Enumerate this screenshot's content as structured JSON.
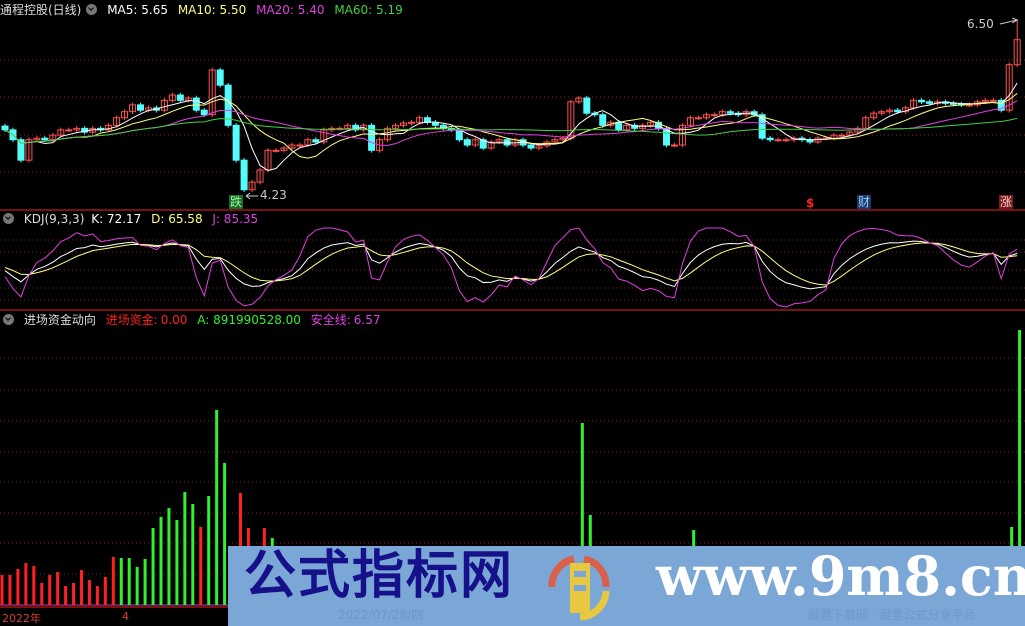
{
  "header": {
    "title": "通程控股(日线)",
    "ma5": "MA5: 5.65",
    "ma10": "MA10: 5.50",
    "ma20": "MA20: 5.40",
    "ma60": "MA60: 5.19"
  },
  "kdj_header": {
    "title": "KDJ(9,3,3)",
    "k": "K: 72.17",
    "d": "D: 65.58",
    "j": "J: 85.35"
  },
  "fund_header": {
    "title": "进场资金动向",
    "entry_label": "进场资金:",
    "entry_value": "0.00",
    "a": "A: 891990528.00",
    "safe_label": "安全线:",
    "safe_value": "6.57"
  },
  "annotations": {
    "high": "6.50",
    "low": "4.23",
    "fall": "跌",
    "dollar": "$",
    "finance": "财",
    "rise": "涨"
  },
  "axis": {
    "year": "2022年",
    "month": "4"
  },
  "watermark": {
    "name": "公式指标网",
    "url": "www.9m8.cn",
    "date": "2022/07/28/四",
    "slogan": "股票下载网 · 股票公式分享平台",
    "logo_ring": "www.9m8.cn"
  },
  "colors": {
    "up": "#ff5050",
    "down": "#54fcfc",
    "ma5": "#ffffff",
    "ma10": "#ffff80",
    "ma20": "#e040e0",
    "ma60": "#40d040",
    "grid": "#802020",
    "fund_up": "#ff2020",
    "fund_down": "#30f030"
  },
  "chart_data": [
    {
      "type": "candlestick",
      "title": "通程控股(日线)",
      "ylim": [
        4.23,
        6.5
      ],
      "low_marker": 4.23,
      "high_marker": 6.5,
      "closes": [
        5.05,
        4.92,
        4.65,
        4.92,
        4.94,
        4.92,
        4.98,
        5.05,
        5.05,
        5.07,
        5.02,
        5.07,
        5.05,
        5.11,
        5.21,
        5.29,
        5.38,
        5.31,
        5.34,
        5.31,
        5.44,
        5.51,
        5.44,
        5.47,
        5.31,
        5.25,
        5.84,
        5.64,
        5.11,
        4.65,
        4.26,
        4.36,
        4.52,
        4.78,
        4.78,
        4.81,
        4.85,
        4.85,
        4.92,
        4.89,
        5.05,
        5.07,
        5.07,
        5.11,
        5.05,
        5.11,
        4.78,
        4.92,
        5.07,
        5.11,
        5.14,
        5.15,
        5.21,
        5.15,
        5.11,
        5.07,
        5.05,
        4.92,
        4.85,
        4.92,
        4.81,
        4.89,
        4.92,
        4.85,
        4.92,
        4.85,
        4.81,
        4.84,
        4.89,
        4.92,
        4.94,
        5.42,
        5.47,
        5.27,
        5.25,
        5.11,
        5.15,
        5.05,
        5.11,
        5.07,
        5.11,
        5.15,
        5.07,
        4.85,
        4.85,
        5.11,
        5.21,
        5.21,
        5.25,
        5.25,
        5.29,
        5.27,
        5.25,
        5.29,
        5.25,
        4.94,
        4.92,
        4.92,
        4.92,
        4.94,
        4.92,
        4.89,
        4.94,
        4.94,
        4.98,
        4.98,
        5.02,
        5.07,
        5.21,
        5.27,
        5.29,
        5.31,
        5.29,
        5.34,
        5.44,
        5.42,
        5.4,
        5.42,
        5.4,
        5.39,
        5.38,
        5.38,
        5.42,
        5.44,
        5.44,
        5.31,
        5.91,
        6.24
      ],
      "series": [
        "MA5",
        "MA10",
        "MA20",
        "MA60"
      ]
    },
    {
      "type": "line",
      "title": "KDJ(9,3,3)",
      "series": [
        "K",
        "D",
        "J"
      ],
      "last": {
        "K": 72.17,
        "D": 65.58,
        "J": 85.35
      }
    },
    {
      "type": "bar",
      "title": "进场资金动向",
      "bars": [
        [
          0,
          30,
          "up"
        ],
        [
          1,
          30,
          "up"
        ],
        [
          2,
          36,
          "up"
        ],
        [
          3,
          42,
          "up"
        ],
        [
          4,
          39,
          "up"
        ],
        [
          5,
          22,
          "up"
        ],
        [
          6,
          30,
          "up"
        ],
        [
          7,
          33,
          "up"
        ],
        [
          8,
          19,
          "up"
        ],
        [
          9,
          22,
          "up"
        ],
        [
          10,
          35,
          "up"
        ],
        [
          11,
          25,
          "up"
        ],
        [
          12,
          19,
          "up"
        ],
        [
          13,
          28,
          "up"
        ],
        [
          14,
          48,
          "up"
        ],
        [
          15,
          47,
          "down"
        ],
        [
          16,
          47,
          "down"
        ],
        [
          17,
          38,
          "down"
        ],
        [
          18,
          46,
          "down"
        ],
        [
          19,
          77,
          "down"
        ],
        [
          20,
          88,
          "down"
        ],
        [
          21,
          97,
          "down"
        ],
        [
          22,
          85,
          "down"
        ],
        [
          23,
          113,
          "down"
        ],
        [
          24,
          101,
          "down"
        ],
        [
          25,
          78,
          "up"
        ],
        [
          26,
          109,
          "down"
        ],
        [
          27,
          195,
          "down"
        ],
        [
          28,
          142,
          "down"
        ],
        [
          30,
          112,
          "up"
        ],
        [
          31,
          77,
          "up"
        ],
        [
          33,
          77,
          "up"
        ],
        [
          34,
          67,
          "down"
        ],
        [
          73,
          182,
          "down"
        ],
        [
          74,
          90,
          "down"
        ],
        [
          87,
          75,
          "down"
        ],
        [
          127,
          78,
          "down"
        ],
        [
          128,
          275,
          "down"
        ]
      ]
    }
  ]
}
